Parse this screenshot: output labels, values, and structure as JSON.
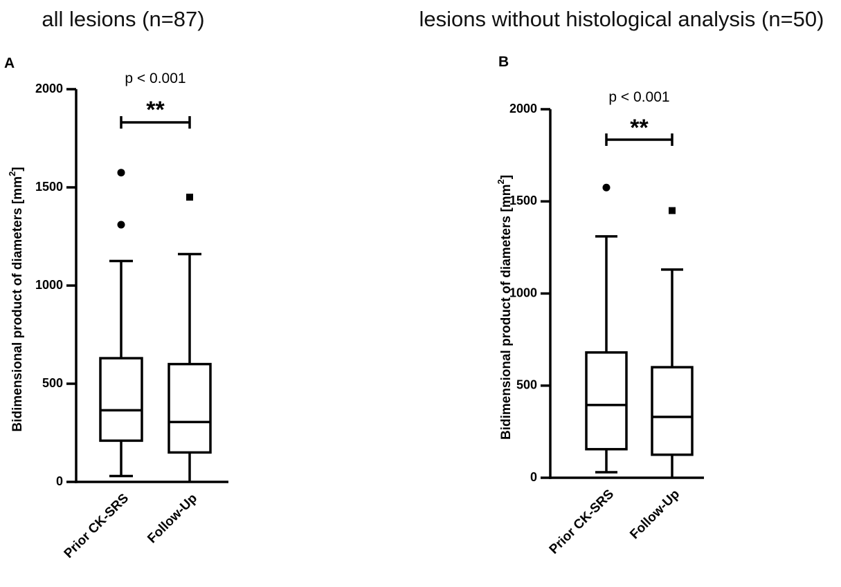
{
  "chart_data": [
    {
      "type": "box",
      "panel": "A",
      "title": "all lesions (n=87)",
      "ylabel": "Bidimensional product of diameters [mm",
      "ylabel_sup": "2",
      "ylabel_suffix": "]",
      "ylim": [
        0,
        2000
      ],
      "yticks": [
        0,
        500,
        1000,
        1500,
        2000
      ],
      "categories": [
        "Prior CK-SRS",
        "Follow-Up"
      ],
      "boxes": [
        {
          "name": "Prior CK-SRS",
          "whisker_low": 30,
          "q1": 210,
          "median": 365,
          "q3": 630,
          "whisker_high": 1125,
          "outliers": [
            1310,
            1575
          ],
          "outlier_marker": "circle"
        },
        {
          "name": "Follow-Up",
          "whisker_low": 0,
          "q1": 150,
          "median": 305,
          "q3": 600,
          "whisker_high": 1160,
          "outliers": [
            1450
          ],
          "outlier_marker": "square"
        }
      ],
      "annotation": {
        "pvalue": "p < 0.001",
        "significance": "**"
      }
    },
    {
      "type": "box",
      "panel": "B",
      "title": "lesions without histological analysis (n=50)",
      "ylabel": "Bidimensional product of diameters [mm",
      "ylabel_sup": "2",
      "ylabel_suffix": "]",
      "ylim": [
        0,
        2000
      ],
      "yticks": [
        0,
        500,
        1000,
        1500,
        2000
      ],
      "categories": [
        "Prior CK-SRS",
        "Follow-Up"
      ],
      "boxes": [
        {
          "name": "Prior CK-SRS",
          "whisker_low": 30,
          "q1": 155,
          "median": 395,
          "q3": 680,
          "whisker_high": 1310,
          "outliers": [
            1575
          ],
          "outlier_marker": "circle"
        },
        {
          "name": "Follow-Up",
          "whisker_low": 0,
          "q1": 125,
          "median": 330,
          "q3": 600,
          "whisker_high": 1130,
          "outliers": [
            1450
          ],
          "outlier_marker": "square"
        }
      ],
      "annotation": {
        "pvalue": "p < 0.001",
        "significance": "**"
      }
    }
  ]
}
